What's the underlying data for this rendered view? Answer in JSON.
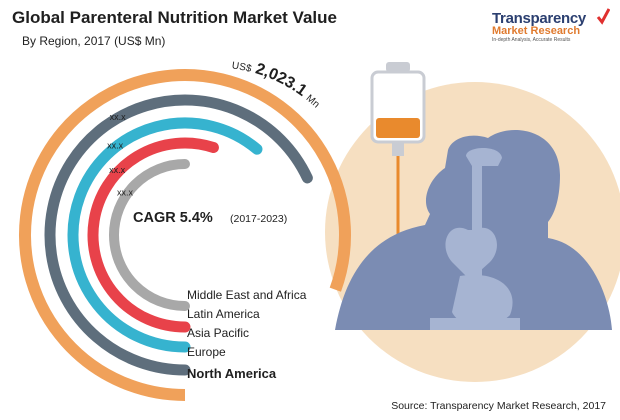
{
  "header": {
    "title": "Global Parenteral Nutrition Market Value",
    "subtitle": "By Region, 2017 (US$ Mn)"
  },
  "logo": {
    "line1": "Transparency",
    "line2": "Market Research",
    "line3": "In-depth Analysis, Accurate Results"
  },
  "total": {
    "prefix": "US$",
    "value": "2,023.1",
    "unit": "Mn"
  },
  "cagr": {
    "label": "CAGR 5.4%",
    "period": "(2017-2023)"
  },
  "source": "Source: Transparency Market Research, 2017",
  "chart_data": {
    "type": "radial-bar",
    "series": [
      {
        "name": "North America",
        "value_label": "",
        "color": "#f0a15a"
      },
      {
        "name": "Europe",
        "value_label": "xx.x",
        "color": "#5e6e7c"
      },
      {
        "name": "Asia Pacific",
        "value_label": "xx.x",
        "color": "#36b3cf"
      },
      {
        "name": "Latin America",
        "value_label": "xx.x",
        "color": "#e8424a"
      },
      {
        "name": "Middle East and Africa",
        "value_label": "xx.x",
        "color": "#a8a8a8"
      }
    ],
    "legend_order": [
      "Middle East and Africa",
      "Latin America",
      "Asia Pacific",
      "Europe",
      "North America"
    ]
  }
}
